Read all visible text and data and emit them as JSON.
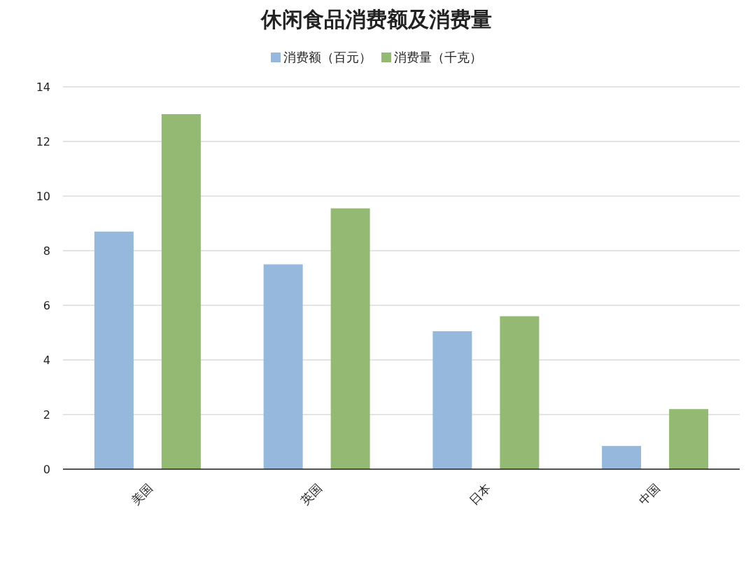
{
  "chart_data": {
    "type": "bar",
    "title": "休闲食品消费额及消费量",
    "categories": [
      "美国",
      "英国",
      "日本",
      "中国"
    ],
    "series": [
      {
        "name": "消费额（百元）",
        "color": "#95b8dc",
        "values": [
          8.7,
          7.5,
          5.05,
          0.85
        ]
      },
      {
        "name": "消费量（千克）",
        "color": "#93b973",
        "values": [
          13,
          9.55,
          5.6,
          2.2
        ]
      }
    ],
    "ylim": [
      0,
      14
    ],
    "yticks": [
      0,
      2,
      4,
      6,
      8,
      10,
      12,
      14
    ],
    "grid": "y",
    "legend": "top"
  }
}
